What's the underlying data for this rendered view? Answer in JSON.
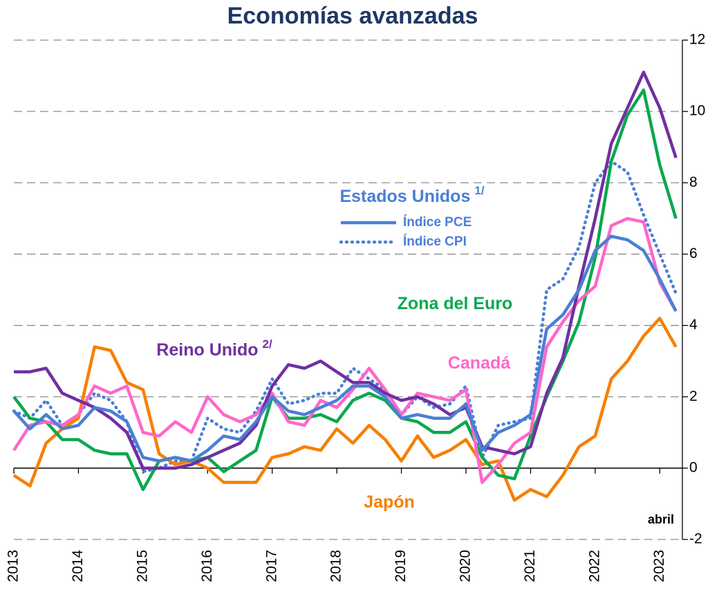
{
  "chart_data": {
    "type": "line",
    "title": "Economías avanzadas",
    "group_label": "Estados Unidos",
    "group_note": "1/",
    "period_label": "abril",
    "x": [
      2013,
      2013.25,
      2013.5,
      2013.75,
      2014,
      2014.25,
      2014.5,
      2014.75,
      2015,
      2015.25,
      2015.5,
      2015.75,
      2016,
      2016.25,
      2016.5,
      2016.75,
      2017,
      2017.25,
      2017.5,
      2017.75,
      2018,
      2018.25,
      2018.5,
      2018.75,
      2019,
      2019.25,
      2019.5,
      2019.75,
      2020,
      2020.25,
      2020.5,
      2020.75,
      2021,
      2021.25,
      2021.5,
      2021.75,
      2022,
      2022.25,
      2022.5,
      2022.75,
      2023,
      2023.25
    ],
    "xlim": [
      2013,
      2023.35
    ],
    "xticks": [
      2013,
      2014,
      2015,
      2016,
      2017,
      2018,
      2019,
      2020,
      2021,
      2022,
      2023
    ],
    "ylim": [
      -2,
      12
    ],
    "yticks": [
      -2,
      0,
      2,
      4,
      6,
      8,
      10,
      12
    ],
    "grid": true,
    "series": [
      {
        "name": "Índice CPI",
        "color": "#4a7fd6",
        "dash": "dotted",
        "values": [
          1.6,
          1.4,
          1.9,
          1.2,
          1.5,
          2.1,
          1.9,
          1.3,
          -0.1,
          0.0,
          0.2,
          0.2,
          1.4,
          1.1,
          1.0,
          1.6,
          2.5,
          1.8,
          1.9,
          2.1,
          2.1,
          2.8,
          2.5,
          2.2,
          1.5,
          2.0,
          1.7,
          1.8,
          2.3,
          0.3,
          1.2,
          1.3,
          1.4,
          5.0,
          5.3,
          6.2,
          8.0,
          8.6,
          8.3,
          7.1,
          6.0,
          4.9
        ]
      },
      {
        "name": "Japón",
        "color": "#f77f00",
        "values": [
          -0.2,
          -0.5,
          0.7,
          1.1,
          1.4,
          3.4,
          3.3,
          2.4,
          2.2,
          0.4,
          0.1,
          0.2,
          0.0,
          -0.4,
          -0.4,
          -0.4,
          0.3,
          0.4,
          0.6,
          0.5,
          1.1,
          0.7,
          1.2,
          0.8,
          0.2,
          0.9,
          0.3,
          0.5,
          0.8,
          0.1,
          0.2,
          -0.9,
          -0.6,
          -0.8,
          -0.2,
          0.6,
          0.9,
          2.5,
          3.0,
          3.7,
          4.2,
          3.4
        ]
      },
      {
        "name": "Zona del Euro",
        "color": "#0aa84f",
        "values": [
          2.0,
          1.4,
          1.3,
          0.8,
          0.8,
          0.5,
          0.4,
          0.4,
          -0.6,
          0.2,
          0.3,
          0.2,
          0.3,
          -0.1,
          0.2,
          0.5,
          2.0,
          1.4,
          1.4,
          1.5,
          1.3,
          1.9,
          2.1,
          1.9,
          1.4,
          1.3,
          1.0,
          1.0,
          1.3,
          0.3,
          -0.2,
          -0.3,
          0.9,
          2.0,
          3.0,
          4.1,
          5.9,
          8.6,
          9.9,
          10.6,
          8.5,
          7.0
        ]
      },
      {
        "name": "Canadá",
        "color": "#ff66cc",
        "values": [
          0.5,
          1.2,
          1.3,
          1.2,
          1.5,
          2.3,
          2.1,
          2.3,
          1.0,
          0.9,
          1.3,
          1.0,
          2.0,
          1.5,
          1.3,
          1.5,
          2.1,
          1.3,
          1.2,
          1.9,
          1.7,
          2.2,
          2.8,
          2.2,
          1.5,
          2.1,
          2.0,
          1.9,
          2.2,
          -0.4,
          0.1,
          0.7,
          1.0,
          3.4,
          4.1,
          4.7,
          5.1,
          6.8,
          7.0,
          6.9,
          5.2,
          4.4
        ]
      },
      {
        "name": "Reino Unido",
        "note": "2/",
        "color": "#7030a0",
        "values": [
          2.7,
          2.7,
          2.8,
          2.1,
          1.9,
          1.7,
          1.4,
          1.0,
          0.0,
          0.0,
          0.0,
          0.1,
          0.3,
          0.5,
          0.7,
          1.2,
          2.3,
          2.9,
          2.8,
          3.0,
          2.7,
          2.4,
          2.4,
          2.1,
          1.9,
          2.0,
          1.8,
          1.5,
          1.7,
          0.6,
          0.5,
          0.4,
          0.6,
          2.1,
          3.1,
          5.1,
          7.0,
          9.1,
          10.1,
          11.1,
          10.1,
          8.7
        ]
      },
      {
        "name": "Índice PCE",
        "color": "#4a7fd6",
        "values": [
          1.6,
          1.1,
          1.5,
          1.1,
          1.2,
          1.7,
          1.6,
          1.3,
          0.3,
          0.2,
          0.3,
          0.2,
          0.5,
          0.9,
          0.8,
          1.3,
          2.0,
          1.6,
          1.5,
          1.7,
          1.9,
          2.3,
          2.3,
          2.0,
          1.4,
          1.5,
          1.4,
          1.4,
          1.8,
          0.5,
          1.0,
          1.2,
          1.5,
          3.9,
          4.3,
          5.0,
          6.1,
          6.5,
          6.4,
          6.1,
          5.3,
          4.4
        ]
      }
    ]
  }
}
